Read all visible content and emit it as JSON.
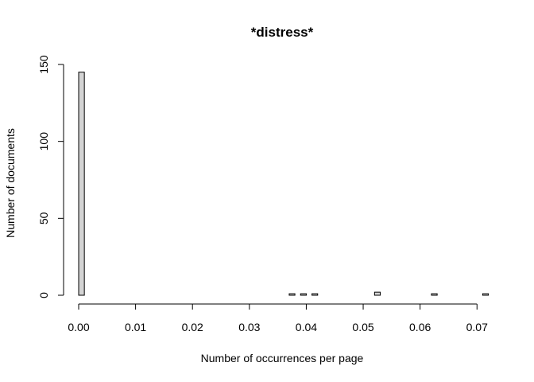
{
  "chart_data": {
    "type": "bar",
    "title": "*distress*",
    "xlabel": "Number of occurrences per page",
    "ylabel": "Number of documents",
    "xlim": [
      0,
      0.0715
    ],
    "ylim": [
      0,
      150
    ],
    "x_ticks": [
      0.0,
      0.01,
      0.02,
      0.03,
      0.04,
      0.05,
      0.06,
      0.07
    ],
    "x_tick_labels": [
      "0.00",
      "0.01",
      "0.02",
      "0.03",
      "0.04",
      "0.05",
      "0.06",
      "0.07"
    ],
    "y_ticks": [
      0,
      50,
      100,
      150
    ],
    "y_tick_labels": [
      "0",
      "50",
      "100",
      "150"
    ],
    "bin_width": 0.001,
    "bin_start": 0,
    "bin_count": 72,
    "nonzero_bins": [
      {
        "x0": 0.0,
        "count": 145
      },
      {
        "x0": 0.037,
        "count": 1
      },
      {
        "x0": 0.039,
        "count": 1
      },
      {
        "x0": 0.041,
        "count": 1
      },
      {
        "x0": 0.052,
        "count": 2
      },
      {
        "x0": 0.062,
        "count": 1
      },
      {
        "x0": 0.071,
        "count": 1
      }
    ],
    "bar_fill": "#d3d3d3",
    "bar_stroke": "#000000",
    "grid": false,
    "legend": false
  }
}
